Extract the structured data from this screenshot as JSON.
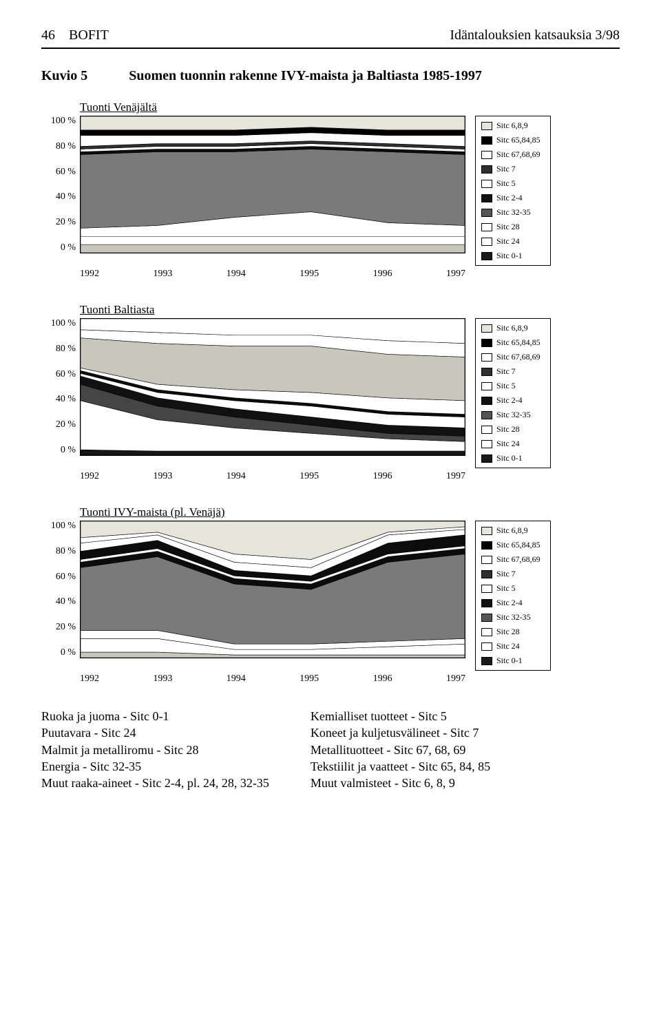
{
  "header": {
    "left_page": "46",
    "left_label": "BOFIT",
    "right_label": "Idäntalouksien katsauksia 3/98"
  },
  "kuvio": {
    "num": "Kuvio 5",
    "title": "Suomen tuonnin rakenne IVY-maista ja Baltiasta 1985-1997"
  },
  "years": [
    "1992",
    "1993",
    "1994",
    "1995",
    "1996",
    "1997"
  ],
  "yticks": [
    "100 %",
    "80 %",
    "60 %",
    "40 %",
    "20 %",
    "0 %"
  ],
  "legend_items": [
    {
      "label": "Sitc 6,8,9",
      "color": "#e7e4da",
      "border": "#000"
    },
    {
      "label": "Sitc 65,84,85",
      "color": "#000000",
      "border": "#000"
    },
    {
      "label": "Sitc 67,68,69",
      "color": "#ffffff",
      "border": "#000"
    },
    {
      "label": "Sitc 7",
      "color": "#2f2f2f",
      "border": "#000"
    },
    {
      "label": "Sitc 5",
      "color": "#ffffff",
      "border": "#000"
    },
    {
      "label": "Sitc 2-4",
      "color": "#111111",
      "border": "#000"
    },
    {
      "label": "Sitc 32-35",
      "color": "#555555",
      "border": "#000"
    },
    {
      "label": "Sitc 28",
      "color": "#ffffff",
      "border": "#000"
    },
    {
      "label": "Sitc 24",
      "color": "#ffffff",
      "border": "#000"
    },
    {
      "label": "Sitc 0-1",
      "color": "#1a1a1a",
      "border": "#000"
    }
  ],
  "charts": {
    "venajalta": {
      "title": "Tuonti Venäjältä",
      "type": "area",
      "xlim": [
        1992,
        1997
      ],
      "ylim": [
        0,
        100
      ],
      "background": "#ffffff",
      "border": "#000000",
      "series": [
        {
          "name": "Sitc 0-1",
          "fill": "#c9c6bc",
          "tops": [
            6,
            6,
            6,
            6,
            6,
            6
          ]
        },
        {
          "name": "Sitc 24",
          "fill": "#ffffff",
          "tops": [
            12,
            12,
            12,
            12,
            12,
            12
          ]
        },
        {
          "name": "Sitc 28",
          "fill": "#ffffff",
          "tops": [
            18,
            20,
            26,
            30,
            22,
            20
          ]
        },
        {
          "name": "Sitc 32-35",
          "fill": "#7a7a7a",
          "tops": [
            72,
            74,
            74,
            76,
            74,
            72
          ]
        },
        {
          "name": "Sitc 2-4",
          "fill": "#0c0c0c",
          "tops": [
            74,
            76,
            76,
            78,
            76,
            74
          ]
        },
        {
          "name": "Sitc 5",
          "fill": "#ffffff",
          "tops": [
            76,
            78,
            78,
            80,
            78,
            76
          ]
        },
        {
          "name": "Sitc 7",
          "fill": "#2f2f2f",
          "tops": [
            78,
            80,
            80,
            82,
            80,
            78
          ]
        },
        {
          "name": "Sitc 67,68,69",
          "fill": "#ffffff",
          "tops": [
            86,
            86,
            86,
            88,
            86,
            86
          ]
        },
        {
          "name": "Sitc 65,84,85",
          "fill": "#000000",
          "tops": [
            90,
            90,
            90,
            92,
            90,
            90
          ]
        },
        {
          "name": "Sitc 6,8,9",
          "fill": "#e7e4da",
          "tops": [
            100,
            100,
            100,
            100,
            100,
            100
          ]
        }
      ]
    },
    "baltiasta": {
      "title": "Tuonti Baltiasta",
      "type": "area",
      "xlim": [
        1992,
        1997
      ],
      "ylim": [
        0,
        100
      ],
      "background": "#ffffff",
      "border": "#000000",
      "series": [
        {
          "name": "Sitc 0-1",
          "fill": "#171717",
          "tops": [
            4,
            3,
            3,
            3,
            3,
            3
          ]
        },
        {
          "name": "Sitc 24",
          "fill": "#ffffff",
          "tops": [
            40,
            26,
            20,
            16,
            12,
            10
          ]
        },
        {
          "name": "Sitc 28",
          "fill": "#454545",
          "tops": [
            52,
            36,
            28,
            22,
            16,
            14
          ]
        },
        {
          "name": "Sitc 32-35",
          "fill": "#111111",
          "tops": [
            58,
            42,
            34,
            28,
            22,
            20
          ]
        },
        {
          "name": "Sitc 2-4",
          "fill": "#ffffff",
          "tops": [
            60,
            46,
            40,
            36,
            30,
            28
          ]
        },
        {
          "name": "Sitc 5",
          "fill": "#0c0c0c",
          "tops": [
            62,
            48,
            42,
            38,
            32,
            30
          ]
        },
        {
          "name": "Sitc 7",
          "fill": "#ffffff",
          "tops": [
            64,
            52,
            48,
            46,
            42,
            40
          ]
        },
        {
          "name": "Sitc 67,68,69",
          "fill": "#c9c6bc",
          "tops": [
            86,
            82,
            80,
            80,
            74,
            72
          ]
        },
        {
          "name": "Sitc 65,84,85",
          "fill": "#ffffff",
          "tops": [
            92,
            90,
            88,
            88,
            84,
            82
          ]
        },
        {
          "name": "Sitc 6,8,9",
          "fill": "#ffffff",
          "tops": [
            100,
            100,
            100,
            100,
            100,
            100
          ]
        }
      ]
    },
    "ivy": {
      "title": "Tuonti IVY-maista (pl. Venäjä)",
      "type": "area",
      "xlim": [
        1992,
        1997
      ],
      "ylim": [
        0,
        100
      ],
      "background": "#ffffff",
      "border": "#000000",
      "series": [
        {
          "name": "Sitc 0-1",
          "fill": "#c9c6bc",
          "tops": [
            4,
            4,
            2,
            2,
            2,
            2
          ]
        },
        {
          "name": "Sitc 24",
          "fill": "#ffffff",
          "tops": [
            14,
            14,
            6,
            6,
            8,
            10
          ]
        },
        {
          "name": "Sitc 28",
          "fill": "#ffffff",
          "tops": [
            20,
            20,
            10,
            10,
            12,
            14
          ]
        },
        {
          "name": "Sitc 32-35",
          "fill": "#7a7a7a",
          "tops": [
            66,
            74,
            54,
            50,
            70,
            76
          ]
        },
        {
          "name": "Sitc 2-4",
          "fill": "#0c0c0c",
          "tops": [
            70,
            78,
            58,
            54,
            74,
            80
          ]
        },
        {
          "name": "Sitc 5",
          "fill": "#ffffff",
          "tops": [
            72,
            80,
            60,
            56,
            76,
            82
          ]
        },
        {
          "name": "Sitc 7",
          "fill": "#0c0c0c",
          "tops": [
            78,
            86,
            64,
            60,
            84,
            90
          ]
        },
        {
          "name": "Sitc 67,68,69",
          "fill": "#ffffff",
          "tops": [
            84,
            90,
            70,
            66,
            90,
            94
          ]
        },
        {
          "name": "Sitc 65,84,85",
          "fill": "#ffffff",
          "tops": [
            88,
            92,
            76,
            72,
            92,
            96
          ]
        },
        {
          "name": "Sitc 6,8,9",
          "fill": "#e7e4da",
          "tops": [
            100,
            100,
            100,
            100,
            100,
            100
          ]
        }
      ]
    }
  },
  "footkey": {
    "left": [
      "Ruoka ja juoma  - Sitc 0-1",
      "Puutavara - Sitc 24",
      "Malmit ja metalliromu - Sitc 28",
      "Energia - Sitc 32-35",
      "Muut raaka-aineet - Sitc 2-4, pl. 24, 28, 32-35"
    ],
    "right": [
      "Kemialliset tuotteet - Sitc 5",
      "Koneet ja kuljetusvälineet - Sitc 7",
      "Metallituotteet - Sitc 67, 68, 69",
      "Tekstiilit ja vaatteet - Sitc 65, 84, 85",
      "Muut valmisteet - Sitc 6, 8, 9"
    ]
  }
}
